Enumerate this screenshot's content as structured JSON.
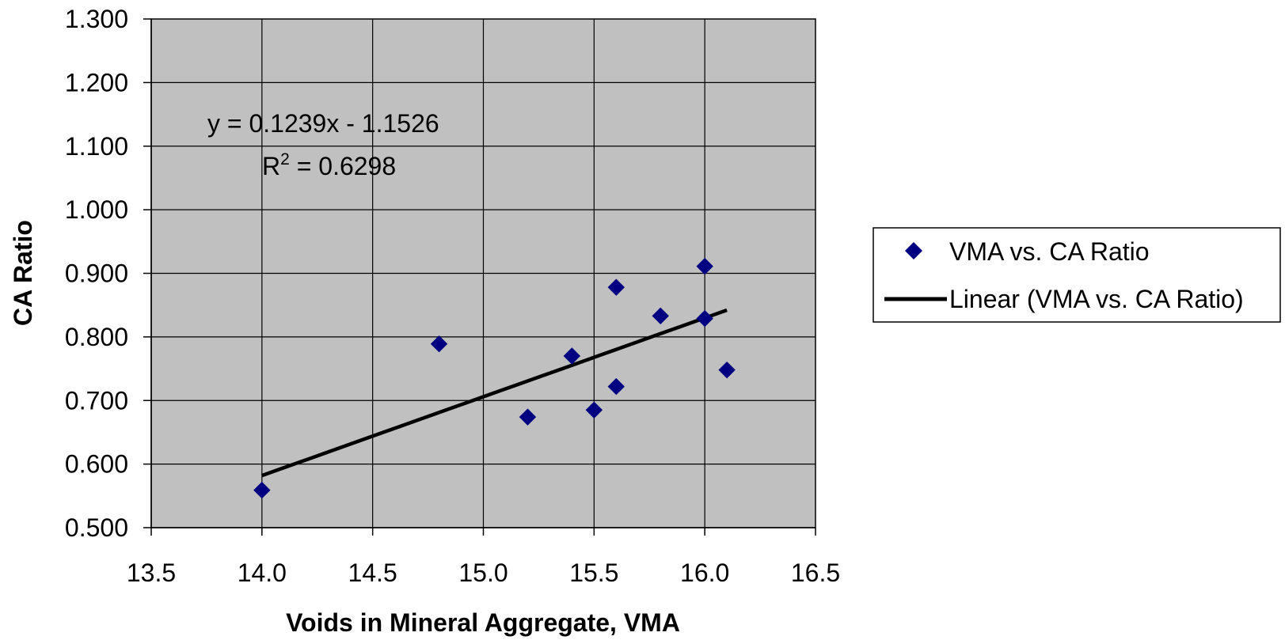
{
  "chart_data": {
    "type": "scatter",
    "title": "",
    "xlabel": "Voids in Mineral Aggregate, VMA",
    "ylabel": "CA Ratio",
    "xlim": [
      13.5,
      16.5
    ],
    "ylim": [
      0.5,
      1.3
    ],
    "xticks": [
      "13.5",
      "14.0",
      "14.5",
      "15.0",
      "15.5",
      "16.0",
      "16.5"
    ],
    "yticks": [
      "0.500",
      "0.600",
      "0.700",
      "0.800",
      "0.900",
      "1.000",
      "1.100",
      "1.200",
      "1.300"
    ],
    "grid": true,
    "legend_position": "right",
    "plot_background": "#c0c0c0",
    "series": [
      {
        "name": "VMA vs. CA Ratio",
        "marker": "diamond",
        "color": "#000080",
        "points": [
          {
            "x": 14.0,
            "y": 0.559
          },
          {
            "x": 14.8,
            "y": 0.789
          },
          {
            "x": 15.2,
            "y": 0.674
          },
          {
            "x": 15.4,
            "y": 0.77
          },
          {
            "x": 15.5,
            "y": 0.685
          },
          {
            "x": 15.6,
            "y": 0.878
          },
          {
            "x": 15.6,
            "y": 0.722
          },
          {
            "x": 15.8,
            "y": 0.833
          },
          {
            "x": 16.0,
            "y": 0.911
          },
          {
            "x": 16.0,
            "y": 0.829
          },
          {
            "x": 16.1,
            "y": 0.748
          }
        ]
      }
    ],
    "trendline": {
      "name": "Linear (VMA vs. CA Ratio)",
      "color": "#000000",
      "slope": 0.1239,
      "intercept": -1.1526,
      "x_range": [
        14.0,
        16.1
      ]
    },
    "annotation": {
      "equation": "y = 0.1239x - 1.1526",
      "r2_prefix": "R",
      "r2_exponent": "2",
      "r2_suffix": " = 0.6298"
    }
  }
}
